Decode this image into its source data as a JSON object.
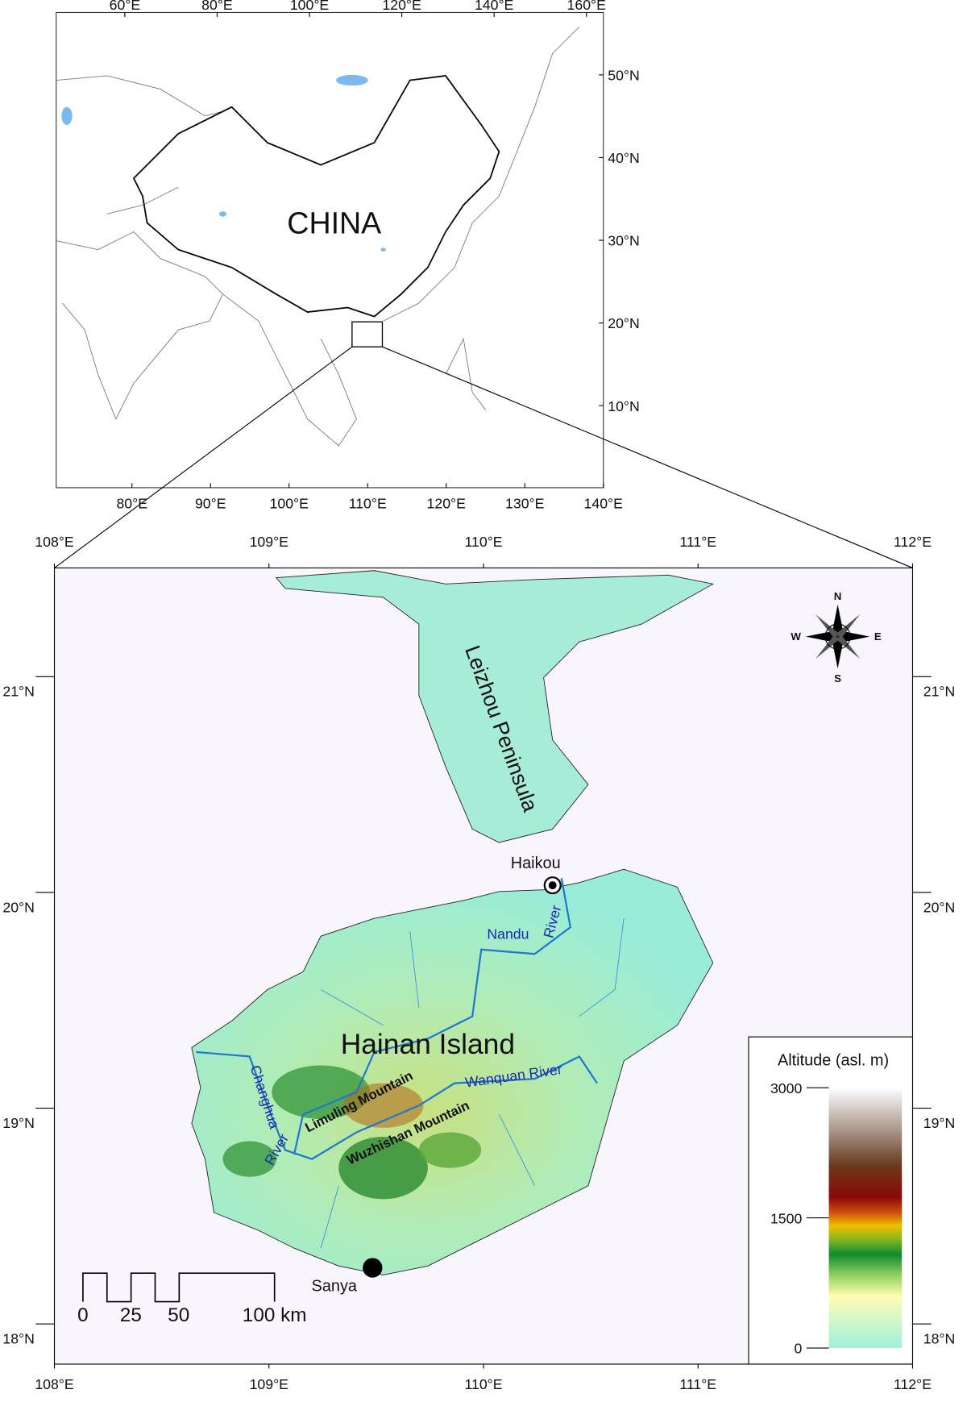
{
  "top_map": {
    "label": "CHINA",
    "x_ticks_top": [
      {
        "value": 60,
        "label": "60°E"
      },
      {
        "value": 80,
        "label": "80°E"
      },
      {
        "value": 100,
        "label": "100°E"
      },
      {
        "value": 120,
        "label": "120°E"
      },
      {
        "value": 140,
        "label": "140°E"
      },
      {
        "value": 160,
        "label": "160°E"
      }
    ],
    "x_ticks_bottom": [
      {
        "value": 80,
        "label": "80°E"
      },
      {
        "value": 90,
        "label": "90°E"
      },
      {
        "value": 100,
        "label": "100°E"
      },
      {
        "value": 110,
        "label": "110°E"
      },
      {
        "value": 120,
        "label": "120°E"
      },
      {
        "value": 130,
        "label": "130°E"
      },
      {
        "value": 140,
        "label": "140°E"
      }
    ],
    "y_ticks_right": [
      {
        "value": 50,
        "label": "50°N"
      },
      {
        "value": 40,
        "label": "40°N"
      },
      {
        "value": 30,
        "label": "30°N"
      },
      {
        "value": 20,
        "label": "20°N"
      },
      {
        "value": 10,
        "label": "10°N"
      }
    ]
  },
  "main_map": {
    "x_ticks": [
      {
        "value": 108,
        "label": "108°E"
      },
      {
        "value": 109,
        "label": "109°E"
      },
      {
        "value": 110,
        "label": "110°E"
      },
      {
        "value": 111,
        "label": "111°E"
      },
      {
        "value": 112,
        "label": "112°E"
      }
    ],
    "y_ticks": [
      {
        "value": 21,
        "label": "21°N"
      },
      {
        "value": 20,
        "label": "20°N"
      },
      {
        "value": 19,
        "label": "19°N"
      },
      {
        "value": 18,
        "label": "18°N"
      }
    ],
    "labels": {
      "peninsula": "Leizhou Peninsula",
      "island": "Hainan Island",
      "haikou": "Haikou",
      "sanya": "Sanya",
      "nandu": "Nandu",
      "nandu_river": "River",
      "wanquan": "Wanquan River",
      "changhua": "Changhua",
      "changhua_river": "River",
      "limuling": "Limuling Mountain",
      "wuzhishan": "Wuzhishan Mountain"
    },
    "compass": {
      "n": "N",
      "s": "S",
      "e": "E",
      "w": "W"
    },
    "legend": {
      "title": "Altitude (asl. m)",
      "ticks": [
        0,
        1500,
        3000
      ]
    },
    "scale_bar": {
      "ticks": [
        0,
        25,
        50,
        {
          "value": 100,
          "label": "100 km"
        }
      ]
    }
  }
}
